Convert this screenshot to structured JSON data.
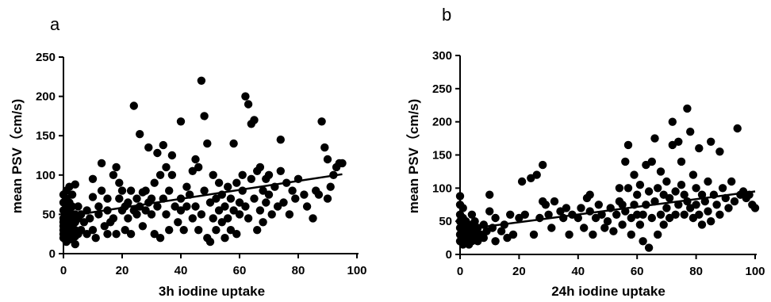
{
  "chart_data": [
    {
      "type": "scatter",
      "panel_label": "a",
      "xlabel": "3h iodine uptake",
      "ylabel": "mean PSV（cm/s)",
      "xlim": [
        0,
        100
      ],
      "ylim": [
        0,
        250
      ],
      "xticks": [
        0,
        20,
        40,
        60,
        80,
        100
      ],
      "yticks": [
        0,
        50,
        100,
        150,
        200,
        250
      ],
      "trendline": {
        "x": [
          0,
          95
        ],
        "y": [
          47,
          101
        ]
      },
      "points": [
        [
          0,
          20
        ],
        [
          0,
          25
        ],
        [
          0,
          30
        ],
        [
          0,
          35
        ],
        [
          0,
          40
        ],
        [
          0,
          45
        ],
        [
          0,
          55
        ],
        [
          0,
          65
        ],
        [
          0,
          75
        ],
        [
          1,
          15
        ],
        [
          1,
          22
        ],
        [
          1,
          28
        ],
        [
          1,
          33
        ],
        [
          1,
          42
        ],
        [
          1,
          50
        ],
        [
          1,
          60
        ],
        [
          1,
          70
        ],
        [
          1,
          80
        ],
        [
          2,
          18
        ],
        [
          2,
          25
        ],
        [
          2,
          32
        ],
        [
          2,
          38
        ],
        [
          2,
          45
        ],
        [
          2,
          55
        ],
        [
          2,
          65
        ],
        [
          2,
          85
        ],
        [
          3,
          20
        ],
        [
          3,
          28
        ],
        [
          3,
          35
        ],
        [
          3,
          42
        ],
        [
          3,
          50
        ],
        [
          3,
          60
        ],
        [
          3,
          75
        ],
        [
          4,
          12
        ],
        [
          4,
          22
        ],
        [
          4,
          30
        ],
        [
          4,
          40
        ],
        [
          4,
          50
        ],
        [
          4,
          88
        ],
        [
          5,
          25
        ],
        [
          5,
          45
        ],
        [
          5,
          60
        ],
        [
          6,
          30
        ],
        [
          6,
          50
        ],
        [
          7,
          40
        ],
        [
          8,
          25
        ],
        [
          8,
          55
        ],
        [
          9,
          45
        ],
        [
          10,
          30
        ],
        [
          10,
          72
        ],
        [
          10,
          95
        ],
        [
          11,
          20
        ],
        [
          12,
          60
        ],
        [
          12,
          50
        ],
        [
          13,
          115
        ],
        [
          13,
          80
        ],
        [
          14,
          35
        ],
        [
          15,
          25
        ],
        [
          15,
          55
        ],
        [
          15,
          70
        ],
        [
          16,
          40
        ],
        [
          17,
          100
        ],
        [
          17,
          45
        ],
        [
          18,
          110
        ],
        [
          18,
          25
        ],
        [
          19,
          70
        ],
        [
          19,
          90
        ],
        [
          20,
          55
        ],
        [
          20,
          80
        ],
        [
          21,
          30
        ],
        [
          21,
          60
        ],
        [
          22,
          65
        ],
        [
          22,
          45
        ],
        [
          23,
          25
        ],
        [
          23,
          80
        ],
        [
          24,
          188
        ],
        [
          24,
          55
        ],
        [
          25,
          70
        ],
        [
          25,
          50
        ],
        [
          26,
          152
        ],
        [
          26,
          60
        ],
        [
          27,
          78
        ],
        [
          27,
          35
        ],
        [
          28,
          55
        ],
        [
          28,
          80
        ],
        [
          29,
          135
        ],
        [
          29,
          65
        ],
        [
          30,
          50
        ],
        [
          30,
          70
        ],
        [
          31,
          25
        ],
        [
          31,
          90
        ],
        [
          32,
          128
        ],
        [
          32,
          60
        ],
        [
          33,
          20
        ],
        [
          33,
          100
        ],
        [
          34,
          138
        ],
        [
          34,
          70
        ],
        [
          35,
          110
        ],
        [
          35,
          50
        ],
        [
          36,
          80
        ],
        [
          36,
          30
        ],
        [
          37,
          125
        ],
        [
          37,
          100
        ],
        [
          38,
          60
        ],
        [
          39,
          40
        ],
        [
          40,
          168
        ],
        [
          40,
          55
        ],
        [
          40,
          70
        ],
        [
          41,
          30
        ],
        [
          42,
          60
        ],
        [
          42,
          85
        ],
        [
          43,
          75
        ],
        [
          44,
          45
        ],
        [
          44,
          105
        ],
        [
          45,
          120
        ],
        [
          45,
          60
        ],
        [
          46,
          30
        ],
        [
          46,
          110
        ],
        [
          47,
          220
        ],
        [
          47,
          50
        ],
        [
          48,
          175
        ],
        [
          48,
          80
        ],
        [
          49,
          20
        ],
        [
          49,
          140
        ],
        [
          50,
          15
        ],
        [
          50,
          65
        ],
        [
          51,
          100
        ],
        [
          51,
          45
        ],
        [
          52,
          70
        ],
        [
          52,
          30
        ],
        [
          53,
          55
        ],
        [
          53,
          90
        ],
        [
          54,
          40
        ],
        [
          54,
          75
        ],
        [
          55,
          20
        ],
        [
          55,
          60
        ],
        [
          56,
          85
        ],
        [
          56,
          45
        ],
        [
          57,
          30
        ],
        [
          57,
          70
        ],
        [
          58,
          140
        ],
        [
          58,
          55
        ],
        [
          59,
          90
        ],
        [
          59,
          25
        ],
        [
          60,
          65
        ],
        [
          60,
          50
        ],
        [
          61,
          100
        ],
        [
          61,
          80
        ],
        [
          62,
          200
        ],
        [
          62,
          60
        ],
        [
          63,
          190
        ],
        [
          63,
          45
        ],
        [
          64,
          165
        ],
        [
          64,
          95
        ],
        [
          65,
          170
        ],
        [
          65,
          70
        ],
        [
          66,
          30
        ],
        [
          66,
          105
        ],
        [
          67,
          110
        ],
        [
          67,
          55
        ],
        [
          68,
          80
        ],
        [
          68,
          40
        ],
        [
          69,
          95
        ],
        [
          69,
          65
        ],
        [
          70,
          100
        ],
        [
          70,
          75
        ],
        [
          71,
          50
        ],
        [
          72,
          85
        ],
        [
          73,
          60
        ],
        [
          74,
          105
        ],
        [
          74,
          145
        ],
        [
          75,
          65
        ],
        [
          76,
          90
        ],
        [
          77,
          50
        ],
        [
          78,
          80
        ],
        [
          79,
          70
        ],
        [
          80,
          95
        ],
        [
          82,
          75
        ],
        [
          83,
          60
        ],
        [
          85,
          45
        ],
        [
          86,
          80
        ],
        [
          87,
          75
        ],
        [
          88,
          168
        ],
        [
          89,
          135
        ],
        [
          90,
          120
        ],
        [
          90,
          70
        ],
        [
          91,
          85
        ],
        [
          92,
          100
        ],
        [
          93,
          110
        ],
        [
          94,
          115
        ],
        [
          95,
          115
        ]
      ]
    },
    {
      "type": "scatter",
      "panel_label": "b",
      "xlabel": "24h iodine uptake",
      "ylabel": "mean PSV（cm/s)",
      "xlim": [
        0,
        100
      ],
      "ylim": [
        0,
        300
      ],
      "xticks": [
        0,
        20,
        40,
        60,
        80,
        100
      ],
      "yticks": [
        0,
        50,
        100,
        150,
        200,
        250,
        300
      ],
      "trendline": {
        "x": [
          0,
          100
        ],
        "y": [
          37,
          95
        ]
      },
      "points": [
        [
          0,
          20
        ],
        [
          0,
          30
        ],
        [
          0,
          40
        ],
        [
          0,
          50
        ],
        [
          0,
          60
        ],
        [
          0,
          75
        ],
        [
          0,
          88
        ],
        [
          1,
          15
        ],
        [
          1,
          25
        ],
        [
          1,
          35
        ],
        [
          1,
          45
        ],
        [
          1,
          55
        ],
        [
          1,
          70
        ],
        [
          2,
          20
        ],
        [
          2,
          30
        ],
        [
          2,
          40
        ],
        [
          2,
          50
        ],
        [
          3,
          15
        ],
        [
          3,
          25
        ],
        [
          3,
          35
        ],
        [
          3,
          45
        ],
        [
          4,
          20
        ],
        [
          4,
          30
        ],
        [
          4,
          40
        ],
        [
          4,
          60
        ],
        [
          5,
          25
        ],
        [
          5,
          35
        ],
        [
          5,
          50
        ],
        [
          6,
          20
        ],
        [
          6,
          40
        ],
        [
          7,
          30
        ],
        [
          8,
          45
        ],
        [
          8,
          25
        ],
        [
          9,
          35
        ],
        [
          10,
          90
        ],
        [
          10,
          65
        ],
        [
          11,
          40
        ],
        [
          12,
          55
        ],
        [
          12,
          20
        ],
        [
          14,
          35
        ],
        [
          15,
          45
        ],
        [
          16,
          25
        ],
        [
          17,
          60
        ],
        [
          18,
          30
        ],
        [
          20,
          55
        ],
        [
          21,
          110
        ],
        [
          22,
          60
        ],
        [
          24,
          115
        ],
        [
          25,
          30
        ],
        [
          26,
          120
        ],
        [
          27,
          55
        ],
        [
          28,
          135
        ],
        [
          28,
          80
        ],
        [
          29,
          75
        ],
        [
          30,
          60
        ],
        [
          31,
          40
        ],
        [
          32,
          80
        ],
        [
          34,
          65
        ],
        [
          35,
          55
        ],
        [
          36,
          70
        ],
        [
          37,
          30
        ],
        [
          38,
          60
        ],
        [
          40,
          55
        ],
        [
          41,
          70
        ],
        [
          42,
          40
        ],
        [
          43,
          85
        ],
        [
          44,
          90
        ],
        [
          44,
          65
        ],
        [
          45,
          30
        ],
        [
          46,
          55
        ],
        [
          47,
          75
        ],
        [
          48,
          60
        ],
        [
          49,
          40
        ],
        [
          50,
          50
        ],
        [
          51,
          70
        ],
        [
          52,
          35
        ],
        [
          53,
          60
        ],
        [
          54,
          100
        ],
        [
          54,
          80
        ],
        [
          55,
          45
        ],
        [
          55,
          75
        ],
        [
          56,
          140
        ],
        [
          56,
          65
        ],
        [
          57,
          165
        ],
        [
          57,
          100
        ],
        [
          58,
          55
        ],
        [
          58,
          30
        ],
        [
          59,
          120
        ],
        [
          59,
          75
        ],
        [
          60,
          60
        ],
        [
          60,
          90
        ],
        [
          61,
          45
        ],
        [
          61,
          105
        ],
        [
          62,
          20
        ],
        [
          62,
          60
        ],
        [
          63,
          135
        ],
        [
          63,
          75
        ],
        [
          64,
          10
        ],
        [
          64,
          95
        ],
        [
          65,
          140
        ],
        [
          65,
          55
        ],
        [
          66,
          175
        ],
        [
          66,
          80
        ],
        [
          67,
          30
        ],
        [
          67,
          100
        ],
        [
          68,
          125
        ],
        [
          68,
          60
        ],
        [
          69,
          90
        ],
        [
          69,
          45
        ],
        [
          70,
          110
        ],
        [
          70,
          70
        ],
        [
          71,
          55
        ],
        [
          71,
          85
        ],
        [
          72,
          200
        ],
        [
          72,
          165
        ],
        [
          73,
          95
        ],
        [
          73,
          60
        ],
        [
          74,
          170
        ],
        [
          74,
          75
        ],
        [
          75,
          140
        ],
        [
          75,
          105
        ],
        [
          76,
          60
        ],
        [
          76,
          90
        ],
        [
          77,
          220
        ],
        [
          77,
          80
        ],
        [
          78,
          185
        ],
        [
          78,
          70
        ],
        [
          79,
          120
        ],
        [
          79,
          55
        ],
        [
          80,
          100
        ],
        [
          80,
          75
        ],
        [
          81,
          160
        ],
        [
          81,
          60
        ],
        [
          82,
          90
        ],
        [
          82,
          45
        ],
        [
          83,
          80
        ],
        [
          84,
          110
        ],
        [
          84,
          65
        ],
        [
          85,
          170
        ],
        [
          85,
          50
        ],
        [
          86,
          90
        ],
        [
          87,
          75
        ],
        [
          88,
          155
        ],
        [
          88,
          60
        ],
        [
          89,
          100
        ],
        [
          90,
          85
        ],
        [
          91,
          70
        ],
        [
          92,
          110
        ],
        [
          93,
          80
        ],
        [
          94,
          190
        ],
        [
          95,
          90
        ],
        [
          96,
          95
        ],
        [
          97,
          85
        ],
        [
          98,
          90
        ],
        [
          99,
          75
        ],
        [
          100,
          70
        ]
      ]
    }
  ]
}
